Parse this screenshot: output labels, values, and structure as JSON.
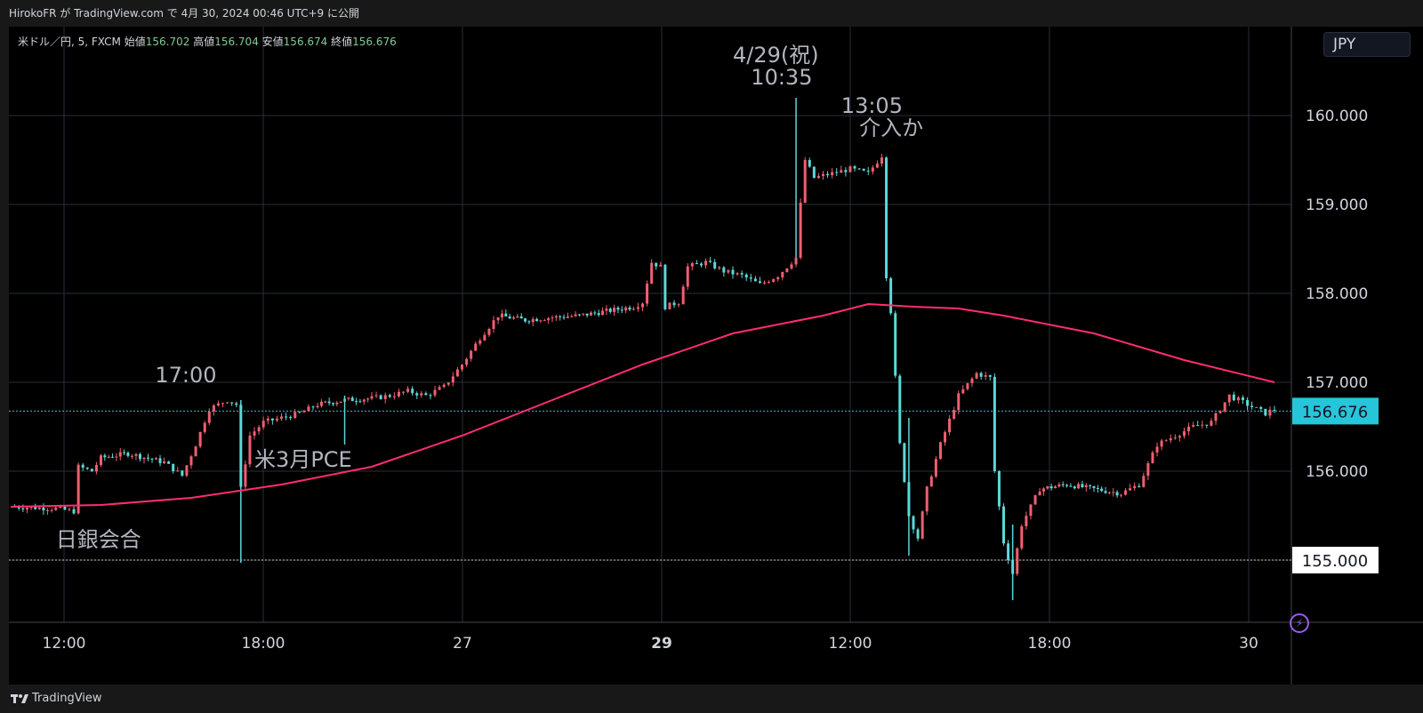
{
  "header": {
    "title": "HirokoFR が TradingView.com で 4月 30, 2024 00:46 UTC+9 に公開"
  },
  "ohlc": {
    "symbol": "米ドル／円, 5, FXCM",
    "open_label": "始値",
    "open": "156.702",
    "high_label": "高値",
    "high": "156.704",
    "low_label": "安値",
    "low": "156.674",
    "close_label": "終値",
    "close": "156.676"
  },
  "currency": "JPY",
  "footer": {
    "brand": "TradingView"
  },
  "colors": {
    "background": "#000000",
    "up": "#ef5f70",
    "down": "#5cd8d8",
    "ma": "#ff2d6f",
    "price_line": "#26c6da",
    "grid": "#2a2e39",
    "text": "#d1d4dc",
    "annotation": "#b2b5be"
  },
  "chart_data": {
    "type": "candlestick",
    "title": "米ドル／円, 5, FXCM",
    "x_ticks": [
      "12:00",
      "18:00",
      "27",
      "29",
      "12:00",
      "18:00",
      "30"
    ],
    "x_ticks_bold": [
      "29"
    ],
    "y_ticks": [
      "160.000",
      "159.000",
      "158.000",
      "157.000",
      "156.000",
      "155.000"
    ],
    "ylim": [
      154.3,
      161.0
    ],
    "current_price": 156.676,
    "current_price_label": "156.676",
    "reference_line": 155.0,
    "reference_line_label": "155.000",
    "price_path": [
      [
        0.0,
        155.6
      ],
      [
        0.05,
        155.58
      ],
      [
        0.07,
        155.55
      ],
      [
        0.075,
        156.05
      ],
      [
        0.09,
        156.0
      ],
      [
        0.1,
        156.15
      ],
      [
        0.13,
        156.2
      ],
      [
        0.17,
        156.1
      ],
      [
        0.19,
        155.95
      ],
      [
        0.205,
        156.3
      ],
      [
        0.22,
        156.7
      ],
      [
        0.24,
        156.8
      ],
      [
        0.25,
        156.75
      ],
      [
        0.255,
        155.8
      ],
      [
        0.265,
        156.4
      ],
      [
        0.28,
        156.55
      ],
      [
        0.3,
        156.6
      ],
      [
        0.32,
        156.65
      ],
      [
        0.34,
        156.75
      ],
      [
        0.37,
        156.8
      ],
      [
        0.4,
        156.82
      ],
      [
        0.42,
        156.85
      ],
      [
        0.44,
        156.9
      ],
      [
        0.46,
        156.85
      ],
      [
        0.48,
        156.95
      ],
      [
        0.5,
        157.2
      ],
      [
        0.52,
        157.5
      ],
      [
        0.54,
        157.75
      ],
      [
        0.57,
        157.7
      ],
      [
        0.6,
        157.73
      ],
      [
        0.63,
        157.75
      ],
      [
        0.66,
        157.8
      ],
      [
        0.69,
        157.85
      ],
      [
        0.7,
        157.9
      ],
      [
        0.71,
        158.35
      ],
      [
        0.72,
        158.3
      ],
      [
        0.725,
        157.85
      ],
      [
        0.74,
        157.9
      ],
      [
        0.75,
        158.3
      ],
      [
        0.77,
        158.35
      ],
      [
        0.79,
        158.25
      ],
      [
        0.81,
        158.2
      ],
      [
        0.83,
        158.1
      ],
      [
        0.85,
        158.2
      ],
      [
        0.86,
        158.3
      ],
      [
        0.87,
        158.4
      ],
      [
        0.875,
        159.0
      ],
      [
        0.88,
        159.5
      ],
      [
        0.89,
        159.3
      ],
      [
        0.91,
        159.35
      ],
      [
        0.93,
        159.4
      ],
      [
        0.95,
        159.35
      ],
      [
        0.965,
        159.55
      ],
      [
        0.97,
        158.2
      ],
      [
        0.975,
        157.8
      ],
      [
        0.985,
        156.3
      ],
      [
        0.995,
        155.5
      ],
      [
        1.005,
        155.25
      ],
      [
        1.015,
        155.8
      ],
      [
        1.03,
        156.3
      ],
      [
        1.05,
        156.85
      ],
      [
        1.07,
        157.1
      ],
      [
        1.085,
        157.05
      ],
      [
        1.09,
        156.0
      ],
      [
        1.1,
        155.2
      ],
      [
        1.11,
        154.85
      ],
      [
        1.12,
        155.4
      ],
      [
        1.14,
        155.8
      ],
      [
        1.17,
        155.85
      ],
      [
        1.2,
        155.8
      ],
      [
        1.23,
        155.75
      ],
      [
        1.25,
        155.85
      ],
      [
        1.27,
        156.3
      ],
      [
        1.29,
        156.4
      ],
      [
        1.31,
        156.5
      ],
      [
        1.33,
        156.55
      ],
      [
        1.35,
        156.85
      ],
      [
        1.37,
        156.75
      ],
      [
        1.39,
        156.65
      ],
      [
        1.4,
        156.7
      ]
    ],
    "spikes": [
      {
        "x": 0.255,
        "low": 154.97,
        "high": 156.8
      },
      {
        "x": 0.37,
        "low": 156.3,
        "high": 156.85
      },
      {
        "x": 0.87,
        "low": 158.4,
        "high": 160.2
      },
      {
        "x": 0.995,
        "low": 155.05,
        "high": 156.6
      },
      {
        "x": 1.11,
        "low": 154.55,
        "high": 155.4
      }
    ],
    "ma_path": [
      [
        0.0,
        155.6
      ],
      [
        0.1,
        155.62
      ],
      [
        0.2,
        155.7
      ],
      [
        0.3,
        155.85
      ],
      [
        0.4,
        156.05
      ],
      [
        0.5,
        156.4
      ],
      [
        0.6,
        156.8
      ],
      [
        0.7,
        157.2
      ],
      [
        0.8,
        157.55
      ],
      [
        0.9,
        157.75
      ],
      [
        0.95,
        157.88
      ],
      [
        1.0,
        157.85
      ],
      [
        1.05,
        157.83
      ],
      [
        1.1,
        157.75
      ],
      [
        1.2,
        157.55
      ],
      [
        1.3,
        157.25
      ],
      [
        1.4,
        157.0
      ]
    ],
    "annotations": [
      {
        "text": "日銀会合",
        "x": 0.05,
        "y": 155.15
      },
      {
        "text": "17:00",
        "x": 0.16,
        "y": 157.0
      },
      {
        "text": "米3月PCE",
        "x": 0.27,
        "y": 156.05
      },
      {
        "text": "4/29(祝)",
        "x": 0.8,
        "y": 160.6
      },
      {
        "text": "10:35",
        "x": 0.82,
        "y": 160.35
      },
      {
        "text": "13:05",
        "x": 0.92,
        "y": 160.03
      },
      {
        "text": "介入か",
        "x": 0.94,
        "y": 159.78
      }
    ]
  }
}
